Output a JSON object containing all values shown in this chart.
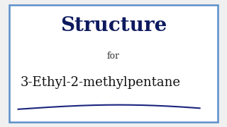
{
  "title": "Structure",
  "subtitle": "for",
  "compound": "3-Ethyl-2-methylpentane",
  "title_color": "#0d1a5e",
  "subtitle_color": "#333333",
  "compound_color": "#111111",
  "background_color": "#f0f0f0",
  "inner_background": "#ffffff",
  "border_color": "#5b8fc9",
  "title_fontsize": 20,
  "subtitle_fontsize": 9,
  "compound_fontsize": 13,
  "underline_color": "#1a237e",
  "border_linewidth": 1.8
}
